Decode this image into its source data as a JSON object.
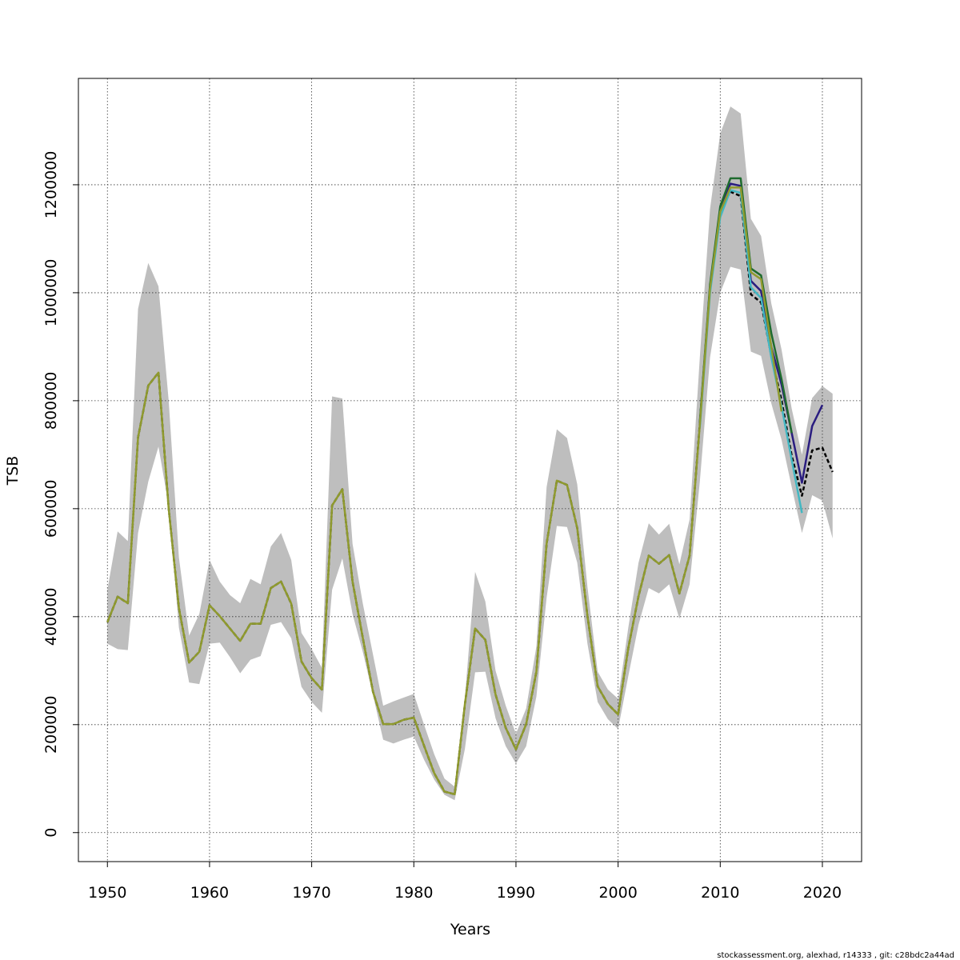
{
  "chart_data": {
    "type": "line",
    "xlabel": "Years",
    "ylabel": "TSB",
    "footer": "stockassessment.org, alexhad, r14333 , git: c28bdc2a44ad",
    "xlim": [
      1947.16,
      2023.84
    ],
    "ylim": [
      -53700,
      1397000
    ],
    "xticks": [
      1950,
      1960,
      1970,
      1980,
      1990,
      2000,
      2010,
      2020
    ],
    "yticks": [
      0,
      200000,
      400000,
      600000,
      800000,
      1000000,
      1200000
    ],
    "grid": true,
    "x": [
      1950,
      1951,
      1952,
      1953,
      1954,
      1955,
      1956,
      1957,
      1958,
      1959,
      1960,
      1961,
      1962,
      1963,
      1964,
      1965,
      1966,
      1967,
      1968,
      1969,
      1970,
      1971,
      1972,
      1973,
      1974,
      1975,
      1976,
      1977,
      1978,
      1979,
      1980,
      1981,
      1982,
      1983,
      1984,
      1985,
      1986,
      1987,
      1988,
      1989,
      1990,
      1991,
      1992,
      1993,
      1994,
      1995,
      1996,
      1997,
      1998,
      1999,
      2000,
      2001,
      2002,
      2003,
      2004,
      2005,
      2006,
      2007,
      2008,
      2009,
      2010,
      2011,
      2012,
      2013,
      2014,
      2015,
      2016,
      2017,
      2018,
      2019,
      2020,
      2021
    ],
    "band": {
      "color": "#bebebe",
      "lower": [
        350000,
        340000,
        338000,
        555000,
        650000,
        715000,
        605000,
        380000,
        278000,
        275000,
        350000,
        352000,
        325000,
        295000,
        320000,
        327000,
        385000,
        390000,
        360000,
        270000,
        242000,
        222000,
        450000,
        508000,
        405000,
        335000,
        255000,
        172000,
        165000,
        172000,
        178000,
        135000,
        98000,
        70000,
        60000,
        155000,
        297000,
        298000,
        212000,
        160000,
        128000,
        160000,
        252000,
        435000,
        568000,
        566000,
        500000,
        350000,
        242000,
        210000,
        192000,
        290000,
        385000,
        453000,
        443000,
        460000,
        396000,
        460000,
        650000,
        880000,
        1000000,
        1048000,
        1043000,
        891000,
        883000,
        795000,
        728000,
        640000,
        555000,
        625000,
        615000,
        545000
      ],
      "upper": [
        450000,
        558000,
        540000,
        970000,
        1055000,
        1012000,
        800000,
        510000,
        365000,
        405000,
        505000,
        465000,
        440000,
        425000,
        470000,
        460000,
        530000,
        555000,
        505000,
        370000,
        340000,
        305000,
        808000,
        804000,
        535000,
        425000,
        330000,
        235000,
        243000,
        250000,
        257000,
        200000,
        145000,
        100000,
        85000,
        250000,
        483000,
        428000,
        300000,
        235000,
        183000,
        230000,
        345000,
        640000,
        747000,
        731000,
        645000,
        455000,
        298000,
        265000,
        248000,
        380000,
        500000,
        573000,
        552000,
        572000,
        497000,
        580000,
        880000,
        1155000,
        1295000,
        1345000,
        1332000,
        1137000,
        1105000,
        980000,
        895000,
        785000,
        700000,
        805000,
        827000,
        813000
      ]
    },
    "series": [
      {
        "color": "#000000",
        "dashed": true,
        "values": [
          389600,
          437000,
          425000,
          732000,
          828000,
          852000,
          600000,
          416000,
          315000,
          335000,
          421000,
          401000,
          378000,
          355000,
          387000,
          387000,
          453000,
          465000,
          424000,
          317000,
          286000,
          265000,
          606000,
          636000,
          465000,
          361000,
          261000,
          201000,
          201000,
          209000,
          213000,
          161000,
          110000,
          76000,
          71000,
          238000,
          378000,
          357000,
          256000,
          194000,
          154000,
          201000,
          298000,
          535000,
          652000,
          644000,
          564000,
          401000,
          271000,
          238000,
          219000,
          342000,
          438000,
          513000,
          498000,
          514000,
          443000,
          513000,
          757000,
          1009000,
          1154000,
          1187000,
          1179000,
          997000,
          982000,
          883000,
          801000,
          698000,
          624000,
          708000,
          713000,
          668000
        ]
      },
      {
        "color": "#2a1d80",
        "x": [
          2008,
          2009,
          2010,
          2011,
          2012,
          2013,
          2014,
          2015,
          2016,
          2017,
          2018,
          2019,
          2020
        ],
        "values": [
          757000,
          1010000,
          1155000,
          1202000,
          1198000,
          1022000,
          1003000,
          900000,
          830000,
          740000,
          648000,
          753000,
          792000
        ]
      },
      {
        "color": "#43b7c2",
        "x": [
          2008,
          2009,
          2010,
          2011,
          2012,
          2013,
          2014,
          2015,
          2016,
          2017,
          2018
        ],
        "values": [
          750000,
          1000000,
          1140000,
          1190000,
          1185000,
          1010000,
          990000,
          880000,
          790000,
          690000,
          592000
        ]
      },
      {
        "color": "#1e6b2e",
        "x": [
          2008,
          2009,
          2010,
          2011,
          2012,
          2013,
          2014,
          2015,
          2016,
          2017
        ],
        "values": [
          760000,
          1015000,
          1160000,
          1212000,
          1212000,
          1045000,
          1032000,
          925000,
          840000,
          740000
        ]
      },
      {
        "color": "#8f9a2e",
        "x": [
          1950,
          1951,
          1952,
          1953,
          1954,
          1955,
          1956,
          1957,
          1958,
          1959,
          1960,
          1961,
          1962,
          1963,
          1964,
          1965,
          1966,
          1967,
          1968,
          1969,
          1970,
          1971,
          1972,
          1973,
          1974,
          1975,
          1976,
          1977,
          1978,
          1979,
          1980,
          1981,
          1982,
          1983,
          1984,
          1985,
          1986,
          1987,
          1988,
          1989,
          1990,
          1991,
          1992,
          1993,
          1994,
          1995,
          1996,
          1997,
          1998,
          1999,
          2000,
          2001,
          2002,
          2003,
          2004,
          2005,
          2006,
          2007,
          2008,
          2009,
          2010,
          2011,
          2012,
          2013,
          2014,
          2015,
          2016
        ],
        "values": [
          389600,
          437000,
          425000,
          732000,
          828000,
          852000,
          600000,
          416000,
          315000,
          335000,
          421000,
          401000,
          378000,
          355000,
          387000,
          387000,
          453000,
          465000,
          424000,
          317000,
          286000,
          265000,
          606000,
          636000,
          465000,
          361000,
          261000,
          201000,
          201000,
          209000,
          213000,
          161000,
          110000,
          76000,
          71000,
          238000,
          378000,
          357000,
          256000,
          194000,
          154000,
          201000,
          298000,
          535000,
          652000,
          644000,
          564000,
          401000,
          271000,
          238000,
          219000,
          342000,
          438000,
          513000,
          498000,
          514000,
          443000,
          513000,
          755000,
          1008000,
          1150000,
          1195000,
          1195000,
          1038000,
          1025000,
          900000,
          780000
        ]
      }
    ]
  }
}
